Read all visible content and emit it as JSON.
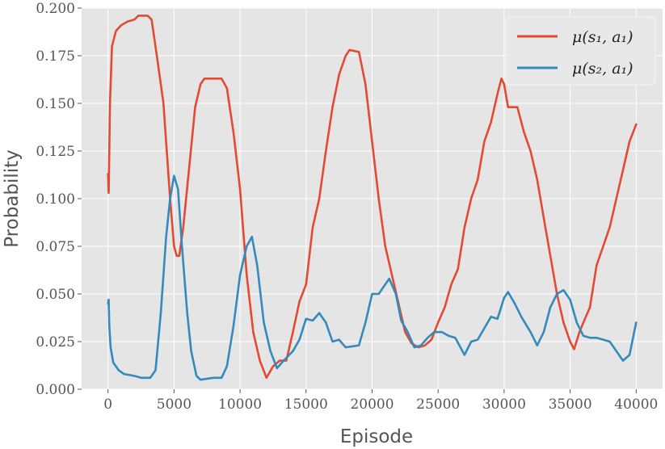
{
  "chart_data": {
    "type": "line",
    "title": "",
    "xlabel": "Episode",
    "ylabel": "Probability",
    "xlim": [
      -2000,
      42000
    ],
    "ylim": [
      0,
      0.2
    ],
    "xticks": [
      0,
      5000,
      10000,
      15000,
      20000,
      25000,
      30000,
      35000,
      40000
    ],
    "xtick_labels": [
      "0",
      "5000",
      "10000",
      "15000",
      "20000",
      "25000",
      "30000",
      "35000",
      "40000"
    ],
    "yticks": [
      0,
      0.025,
      0.05,
      0.075,
      0.1,
      0.125,
      0.15,
      0.175,
      0.2
    ],
    "ytick_labels": [
      "0.000",
      "0.025",
      "0.050",
      "0.075",
      "0.100",
      "0.125",
      "0.150",
      "0.175",
      "0.200"
    ],
    "grid": true,
    "legend_position": "top-right",
    "background": "#e5e5e5",
    "series": [
      {
        "name": "μ(s₁, a₁)",
        "color": "#e24a33",
        "points": [
          [
            0,
            0.113
          ],
          [
            50,
            0.103
          ],
          [
            150,
            0.15
          ],
          [
            300,
            0.18
          ],
          [
            600,
            0.188
          ],
          [
            1000,
            0.191
          ],
          [
            1500,
            0.193
          ],
          [
            2000,
            0.194
          ],
          [
            2300,
            0.196
          ],
          [
            3000,
            0.196
          ],
          [
            3300,
            0.194
          ],
          [
            3700,
            0.175
          ],
          [
            4200,
            0.15
          ],
          [
            4700,
            0.1
          ],
          [
            5000,
            0.075
          ],
          [
            5200,
            0.07
          ],
          [
            5400,
            0.07
          ],
          [
            5700,
            0.085
          ],
          [
            6200,
            0.12
          ],
          [
            6600,
            0.148
          ],
          [
            7000,
            0.16
          ],
          [
            7300,
            0.163
          ],
          [
            8000,
            0.163
          ],
          [
            8600,
            0.163
          ],
          [
            9000,
            0.158
          ],
          [
            9500,
            0.135
          ],
          [
            10000,
            0.105
          ],
          [
            10500,
            0.06
          ],
          [
            11000,
            0.03
          ],
          [
            11500,
            0.015
          ],
          [
            12000,
            0.006
          ],
          [
            12500,
            0.012
          ],
          [
            13000,
            0.015
          ],
          [
            13500,
            0.015
          ],
          [
            14000,
            0.03
          ],
          [
            14500,
            0.046
          ],
          [
            15000,
            0.055
          ],
          [
            15500,
            0.085
          ],
          [
            16000,
            0.1
          ],
          [
            16500,
            0.125
          ],
          [
            17000,
            0.148
          ],
          [
            17500,
            0.165
          ],
          [
            18000,
            0.175
          ],
          [
            18300,
            0.178
          ],
          [
            19000,
            0.177
          ],
          [
            19500,
            0.16
          ],
          [
            20000,
            0.13
          ],
          [
            20500,
            0.1
          ],
          [
            21000,
            0.075
          ],
          [
            21500,
            0.06
          ],
          [
            22000,
            0.045
          ],
          [
            22500,
            0.03
          ],
          [
            23000,
            0.024
          ],
          [
            23500,
            0.022
          ],
          [
            24000,
            0.023
          ],
          [
            24500,
            0.026
          ],
          [
            25000,
            0.035
          ],
          [
            25500,
            0.043
          ],
          [
            26000,
            0.055
          ],
          [
            26500,
            0.063
          ],
          [
            27000,
            0.085
          ],
          [
            27500,
            0.1
          ],
          [
            28000,
            0.11
          ],
          [
            28500,
            0.13
          ],
          [
            29000,
            0.14
          ],
          [
            29500,
            0.155
          ],
          [
            29800,
            0.163
          ],
          [
            30000,
            0.16
          ],
          [
            30300,
            0.148
          ],
          [
            31000,
            0.148
          ],
          [
            31500,
            0.135
          ],
          [
            32000,
            0.125
          ],
          [
            32500,
            0.11
          ],
          [
            33000,
            0.09
          ],
          [
            33500,
            0.07
          ],
          [
            34000,
            0.05
          ],
          [
            34500,
            0.035
          ],
          [
            35000,
            0.025
          ],
          [
            35300,
            0.021
          ],
          [
            35700,
            0.03
          ],
          [
            36000,
            0.035
          ],
          [
            36500,
            0.043
          ],
          [
            37000,
            0.065
          ],
          [
            37500,
            0.075
          ],
          [
            38000,
            0.085
          ],
          [
            38500,
            0.1
          ],
          [
            39000,
            0.115
          ],
          [
            39500,
            0.13
          ],
          [
            40000,
            0.139
          ]
        ]
      },
      {
        "name": "μ(s₂, a₁)",
        "color": "#348abd",
        "points": [
          [
            0,
            0.045
          ],
          [
            50,
            0.047
          ],
          [
            100,
            0.033
          ],
          [
            200,
            0.022
          ],
          [
            400,
            0.014
          ],
          [
            800,
            0.01
          ],
          [
            1200,
            0.008
          ],
          [
            2000,
            0.007
          ],
          [
            2500,
            0.006
          ],
          [
            3200,
            0.006
          ],
          [
            3600,
            0.01
          ],
          [
            4000,
            0.04
          ],
          [
            4400,
            0.08
          ],
          [
            4700,
            0.1
          ],
          [
            5000,
            0.112
          ],
          [
            5300,
            0.105
          ],
          [
            5600,
            0.075
          ],
          [
            6000,
            0.04
          ],
          [
            6300,
            0.02
          ],
          [
            6700,
            0.007
          ],
          [
            7000,
            0.005
          ],
          [
            8000,
            0.006
          ],
          [
            8600,
            0.006
          ],
          [
            9000,
            0.012
          ],
          [
            9500,
            0.033
          ],
          [
            10000,
            0.06
          ],
          [
            10500,
            0.075
          ],
          [
            10900,
            0.08
          ],
          [
            11300,
            0.065
          ],
          [
            11800,
            0.035
          ],
          [
            12300,
            0.02
          ],
          [
            12800,
            0.011
          ],
          [
            13300,
            0.015
          ],
          [
            14000,
            0.02
          ],
          [
            14500,
            0.026
          ],
          [
            15000,
            0.037
          ],
          [
            15500,
            0.036
          ],
          [
            16000,
            0.04
          ],
          [
            16500,
            0.035
          ],
          [
            17000,
            0.025
          ],
          [
            17500,
            0.026
          ],
          [
            18000,
            0.022
          ],
          [
            19000,
            0.023
          ],
          [
            19500,
            0.035
          ],
          [
            20000,
            0.05
          ],
          [
            20500,
            0.05
          ],
          [
            21000,
            0.055
          ],
          [
            21300,
            0.058
          ],
          [
            21800,
            0.05
          ],
          [
            22200,
            0.036
          ],
          [
            22700,
            0.03
          ],
          [
            23200,
            0.022
          ],
          [
            23700,
            0.023
          ],
          [
            24200,
            0.027
          ],
          [
            24700,
            0.03
          ],
          [
            25300,
            0.03
          ],
          [
            25800,
            0.028
          ],
          [
            26300,
            0.027
          ],
          [
            27000,
            0.018
          ],
          [
            27500,
            0.025
          ],
          [
            28000,
            0.026
          ],
          [
            28500,
            0.032
          ],
          [
            29000,
            0.038
          ],
          [
            29500,
            0.037
          ],
          [
            30000,
            0.048
          ],
          [
            30300,
            0.051
          ],
          [
            30800,
            0.045
          ],
          [
            31300,
            0.038
          ],
          [
            32000,
            0.03
          ],
          [
            32500,
            0.023
          ],
          [
            33000,
            0.03
          ],
          [
            33500,
            0.043
          ],
          [
            34000,
            0.05
          ],
          [
            34500,
            0.052
          ],
          [
            35000,
            0.047
          ],
          [
            35500,
            0.035
          ],
          [
            36000,
            0.028
          ],
          [
            36500,
            0.027
          ],
          [
            37000,
            0.027
          ],
          [
            38000,
            0.025
          ],
          [
            38500,
            0.02
          ],
          [
            39000,
            0.015
          ],
          [
            39500,
            0.018
          ],
          [
            40000,
            0.035
          ]
        ]
      }
    ]
  }
}
